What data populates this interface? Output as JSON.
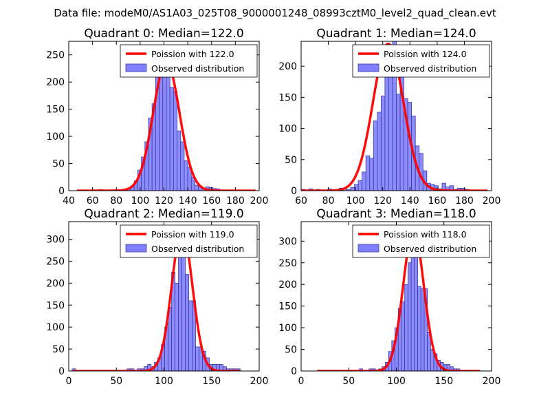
{
  "figure_title": "Data file: modeM0/AS1A03_025T08_9000001248_08993cztM0_level2_quad_clean.evt",
  "colors": {
    "hist_fill": "#8080ff",
    "hist_edge": "#3a3aa0",
    "curve": "#ff0000",
    "axis": "#000000",
    "background": "#ffffff"
  },
  "chart_data": [
    {
      "type": "bar",
      "title": "Quadrant 0: Median=122.0",
      "legend": [
        "Poission with 122.0",
        "Observed distribution"
      ],
      "xlim": [
        40,
        200
      ],
      "ylim": [
        0,
        275
      ],
      "xticks": [
        40,
        60,
        80,
        100,
        120,
        140,
        160,
        180,
        200
      ],
      "yticks": [
        0,
        50,
        100,
        150,
        200,
        250
      ],
      "bin_width": 3,
      "bin_edges_start": [
        47,
        50,
        53,
        56,
        59,
        62,
        65,
        68,
        71,
        74,
        77,
        80,
        83,
        86,
        89,
        92,
        95,
        98,
        101,
        104,
        107,
        110,
        113,
        116,
        119,
        122,
        125,
        128,
        131,
        134,
        137,
        140,
        143,
        146,
        149,
        152,
        155,
        158,
        161,
        164,
        167,
        170,
        173,
        176,
        179,
        182,
        185,
        188,
        191,
        194
      ],
      "values": [
        1,
        0,
        0,
        0,
        0,
        0,
        2,
        0,
        0,
        0,
        0,
        0,
        0,
        2,
        4,
        8,
        18,
        38,
        62,
        90,
        134,
        160,
        225,
        230,
        260,
        247,
        190,
        183,
        110,
        90,
        55,
        43,
        25,
        10,
        8,
        4,
        7,
        6,
        4,
        3,
        1,
        1,
        1,
        1,
        0,
        0,
        0,
        0,
        0,
        0
      ],
      "poisson_mean": 122.0,
      "poisson_peak": 237,
      "x_range": [
        47,
        197
      ]
    },
    {
      "type": "bar",
      "title": "Quadrant 1: Median=124.0",
      "legend": [
        "Poission with 124.0",
        "Observed distribution"
      ],
      "xlim": [
        60,
        200
      ],
      "ylim": [
        0,
        240
      ],
      "xticks": [
        60,
        80,
        100,
        120,
        140,
        160,
        180,
        200
      ],
      "yticks": [
        0,
        50,
        100,
        150,
        200
      ],
      "bin_width": 2.8,
      "bin_edges_start": [
        60.0,
        62.8,
        65.6,
        68.4,
        71.2,
        74.0,
        76.8,
        79.6,
        82.4,
        85.2,
        88.0,
        90.8,
        93.6,
        96.4,
        99.2,
        102.0,
        104.8,
        107.6,
        110.4,
        113.2,
        116.0,
        118.8,
        121.6,
        124.4,
        127.2,
        130.0,
        132.8,
        135.6,
        138.4,
        141.2,
        144.0,
        146.8,
        149.6,
        152.4,
        155.2,
        158.0,
        160.8,
        163.6,
        166.4,
        169.2,
        172.0,
        174.8,
        177.6,
        180.4,
        183.2,
        186.0,
        188.8,
        191.6,
        194.4
      ],
      "values": [
        2,
        1,
        3,
        0,
        2,
        0,
        0,
        3,
        0,
        0,
        4,
        4,
        2,
        5,
        10,
        16,
        30,
        56,
        52,
        112,
        126,
        152,
        200,
        185,
        240,
        155,
        215,
        148,
        142,
        120,
        72,
        60,
        32,
        12,
        10,
        8,
        3,
        12,
        6,
        8,
        2,
        4,
        4,
        2,
        0,
        0,
        1,
        0,
        0
      ],
      "poisson_mean": 124.0,
      "poisson_peak": 236,
      "x_range": [
        60,
        197
      ]
    },
    {
      "type": "bar",
      "title": "Quadrant 2: Median=119.0",
      "legend": [
        "Poission with 119.0",
        "Observed distribution"
      ],
      "xlim": [
        0,
        200
      ],
      "ylim": [
        0,
        340
      ],
      "xticks": [
        0,
        50,
        100,
        150,
        200
      ],
      "yticks": [
        0,
        50,
        100,
        150,
        200,
        250,
        300
      ],
      "bin_width": 3.6,
      "bin_edges_start": [
        3.6,
        7.2,
        10.8,
        14.4,
        18.0,
        21.6,
        25.2,
        28.8,
        32.4,
        36.0,
        39.6,
        43.2,
        46.8,
        50.4,
        54.0,
        57.6,
        61.2,
        64.8,
        68.4,
        72.0,
        75.6,
        79.2,
        82.8,
        86.4,
        90.0,
        93.6,
        97.2,
        100.8,
        104.4,
        108.0,
        111.6,
        115.2,
        118.8,
        122.4,
        126.0,
        129.6,
        133.2,
        136.8,
        140.4,
        144.0,
        147.6,
        151.2,
        154.8,
        158.4,
        162.0,
        165.6,
        169.2,
        172.8,
        176.4
      ],
      "values": [
        5,
        0,
        0,
        0,
        0,
        0,
        0,
        0,
        0,
        0,
        0,
        0,
        0,
        0,
        0,
        0,
        5,
        5,
        0,
        5,
        5,
        10,
        15,
        10,
        20,
        30,
        60,
        100,
        145,
        225,
        200,
        260,
        270,
        220,
        160,
        160,
        55,
        55,
        45,
        30,
        15,
        15,
        15,
        15,
        10,
        5,
        5,
        5,
        5
      ],
      "poisson_mean": 119.0,
      "poisson_peak": 320,
      "x_range": [
        5,
        180
      ]
    },
    {
      "type": "bar",
      "title": "Quadrant 3: Median=118.0",
      "legend": [
        "Poission with 118.0",
        "Observed distribution"
      ],
      "xlim": [
        0,
        200
      ],
      "ylim": [
        0,
        345
      ],
      "xticks": [
        0,
        50,
        100,
        150,
        200
      ],
      "yticks": [
        0,
        50,
        100,
        150,
        200,
        250,
        300
      ],
      "bin_width": 3.4,
      "bin_edges_start": [
        17.0,
        20.4,
        23.8,
        27.2,
        30.6,
        34.0,
        37.4,
        40.8,
        44.2,
        47.6,
        51.0,
        54.4,
        57.8,
        61.2,
        64.6,
        68.0,
        71.4,
        74.8,
        78.2,
        81.6,
        85.0,
        88.4,
        91.8,
        95.2,
        98.6,
        102.0,
        105.4,
        108.8,
        112.2,
        115.6,
        119.0,
        122.4,
        125.8,
        129.2,
        132.6,
        136.0,
        139.4,
        142.8,
        146.2,
        149.6,
        153.0,
        156.4,
        159.8,
        163.2,
        166.6,
        170.0,
        173.4,
        176.8,
        180.2,
        183.6
      ],
      "values": [
        0,
        0,
        0,
        0,
        0,
        0,
        0,
        0,
        0,
        0,
        0,
        0,
        0,
        5,
        0,
        0,
        5,
        5,
        0,
        5,
        10,
        20,
        45,
        70,
        100,
        145,
        160,
        200,
        250,
        280,
        265,
        195,
        190,
        190,
        90,
        50,
        40,
        25,
        20,
        15,
        15,
        10,
        5,
        5,
        0,
        0,
        0,
        0,
        0,
        0
      ],
      "poisson_mean": 118.0,
      "poisson_peak": 325,
      "x_range": [
        17,
        188
      ]
    }
  ]
}
